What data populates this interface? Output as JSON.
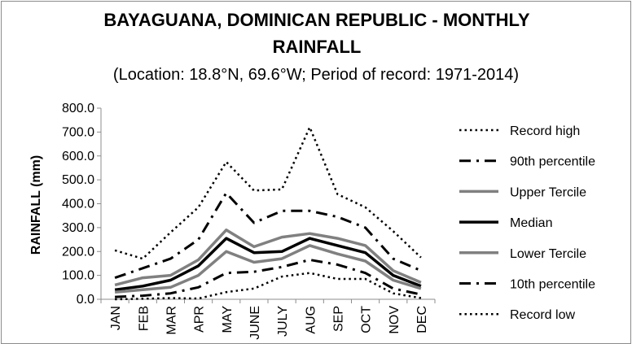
{
  "chart_data": {
    "type": "line",
    "title_line1": "BAYAGUANA, DOMINICAN REPUBLIC - MONTHLY",
    "title_line2": "RAINFALL",
    "subtitle": "(Location: 18.8°N, 69.6°W; Period of record: 1971-2014)",
    "xlabel": "",
    "ylabel": "RAINFALL (mm)",
    "ylim": [
      0,
      800
    ],
    "yticks": [
      "0.0",
      "100.0",
      "200.0",
      "300.0",
      "400.0",
      "500.0",
      "600.0",
      "700.0",
      "800.0"
    ],
    "categories": [
      "JAN",
      "FEB",
      "MAR",
      "APR",
      "MAY",
      "JUNE",
      "JULY",
      "AUG",
      "SEP",
      "OCT",
      "NOV",
      "DEC"
    ],
    "grid": false,
    "legend": "right",
    "series": [
      {
        "name": "Record high",
        "color": "#000000",
        "style": "dotted",
        "values": [
          205,
          170,
          280,
          385,
          575,
          455,
          460,
          720,
          440,
          385,
          285,
          175
        ]
      },
      {
        "name": "90th percentile",
        "color": "#000000",
        "style": "dashdot",
        "values": [
          90,
          130,
          170,
          250,
          445,
          320,
          370,
          370,
          345,
          300,
          170,
          120
        ]
      },
      {
        "name": "Upper Tercile",
        "color": "#808080",
        "style": "solid",
        "values": [
          60,
          90,
          100,
          165,
          290,
          220,
          260,
          275,
          255,
          225,
          120,
          70
        ]
      },
      {
        "name": "Median",
        "color": "#000000",
        "style": "solid",
        "values": [
          40,
          55,
          80,
          140,
          255,
          195,
          200,
          255,
          225,
          195,
          100,
          55
        ]
      },
      {
        "name": "Lower Tercile",
        "color": "#808080",
        "style": "solid",
        "values": [
          30,
          40,
          50,
          100,
          200,
          155,
          170,
          225,
          190,
          160,
          80,
          45
        ]
      },
      {
        "name": "10th percentile",
        "color": "#000000",
        "style": "dashdot",
        "values": [
          10,
          15,
          25,
          50,
          110,
          115,
          135,
          165,
          145,
          110,
          45,
          20
        ]
      },
      {
        "name": "Record low",
        "color": "#000000",
        "style": "dotted",
        "values": [
          0,
          2,
          5,
          3,
          30,
          45,
          95,
          110,
          85,
          85,
          25,
          5
        ]
      }
    ]
  }
}
